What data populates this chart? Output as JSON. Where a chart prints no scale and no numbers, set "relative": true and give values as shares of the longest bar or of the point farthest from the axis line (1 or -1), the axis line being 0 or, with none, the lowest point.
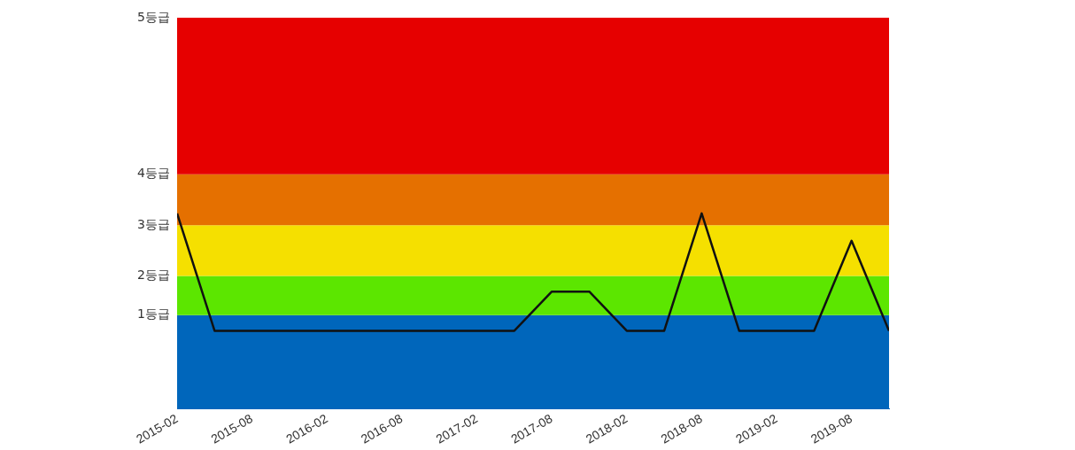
{
  "chart_data": {
    "type": "line",
    "relative": true,
    "x": [
      "2015-02",
      "2015-05",
      "2015-08",
      "2015-11",
      "2016-02",
      "2016-05",
      "2016-08",
      "2016-11",
      "2017-02",
      "2017-05",
      "2017-08",
      "2017-11",
      "2018-02",
      "2018-05",
      "2018-08",
      "2018-11",
      "2019-02",
      "2019-05",
      "2019-08",
      "2019-11"
    ],
    "series": [
      {
        "color": "#111111",
        "values": [
          1,
          0.4,
          0.4,
          0.4,
          0.4,
          0.4,
          0.4,
          0.4,
          0.4,
          0.4,
          0.6,
          0.6,
          0.4,
          0.4,
          1,
          0.4,
          0.4,
          0.4,
          0.86,
          0.4
        ]
      }
    ],
    "xlim": [
      "2015-02",
      "2019-11"
    ],
    "xticks": [
      "2015-02",
      "2015-08",
      "2016-02",
      "2016-08",
      "2017-02",
      "2017-08",
      "2018-02",
      "2018-08",
      "2019-02",
      "2019-08"
    ],
    "bands": [
      {
        "axis": "y",
        "from": 0,
        "to": 0.48,
        "color": "#0066bb",
        "label": "1등급"
      },
      {
        "axis": "y",
        "from": 0.48,
        "to": 0.68,
        "color": "#5ce600",
        "label": "2등급"
      },
      {
        "axis": "y",
        "from": 0.68,
        "to": 0.94,
        "color": "#f5e000",
        "label": "3등급"
      },
      {
        "axis": "y",
        "from": 0.94,
        "to": 1.2,
        "color": "#e57000",
        "label": "4등급"
      },
      {
        "axis": "y",
        "from": 1.2,
        "to": 2.0,
        "color": "#e60000",
        "label": "5등급"
      }
    ],
    "grid": false,
    "legend": false,
    "marker": "none",
    "line_style": "solid"
  }
}
